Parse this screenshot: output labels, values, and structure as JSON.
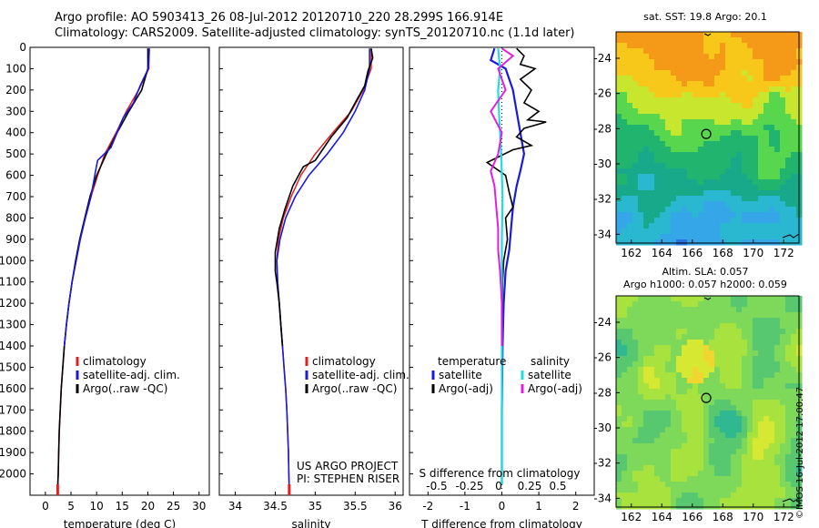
{
  "header": {
    "line1": "Argo profile: AO 5903413_26 08-Jul-2012 20120710_220 28.299S 166.914E",
    "line2": "Climatology: CARS2009. Satellite-adjusted climatology: synTS_20120710.nc (1.1d later)"
  },
  "colors": {
    "climatology": "#e02020",
    "satellite": "#1a1adc",
    "argo": "#000000",
    "sal_satellite": "#22dde0",
    "sal_argo": "#e020e0"
  },
  "chart_data": [
    {
      "type": "line",
      "id": "temperature",
      "xlabel": "temperature (deg C)",
      "ylabel": "",
      "xlim": [
        -3,
        32
      ],
      "ylim": [
        2100,
        0
      ],
      "xticks": [
        0,
        5,
        10,
        15,
        20,
        25,
        30
      ],
      "yticks": [
        0,
        100,
        200,
        300,
        400,
        500,
        600,
        700,
        800,
        900,
        1000,
        1100,
        1200,
        1300,
        1400,
        1500,
        1600,
        1700,
        1800,
        1900,
        2000
      ],
      "legend": [
        "climatology",
        "satellite-adj. clim.",
        "Argo(..raw -QC)"
      ],
      "series": [
        {
          "name": "climatology",
          "points": [
            [
              20.2,
              5
            ],
            [
              20.2,
              100
            ],
            [
              18.2,
              200
            ],
            [
              15.8,
              300
            ],
            [
              13.8,
              400
            ],
            [
              11.6,
              500
            ],
            [
              10.2,
              600
            ],
            [
              8.9,
              700
            ],
            [
              7.8,
              800
            ],
            [
              6.8,
              900
            ],
            [
              6.0,
              1000
            ],
            [
              5.2,
              1100
            ],
            [
              4.6,
              1200
            ],
            [
              4.1,
              1300
            ],
            [
              3.7,
              1400
            ],
            [
              3.4,
              1500
            ],
            [
              3.1,
              1600
            ],
            [
              2.9,
              1700
            ],
            [
              2.7,
              1800
            ],
            [
              2.6,
              1900
            ],
            [
              2.5,
              2000
            ],
            [
              2.4,
              2060
            ]
          ]
        },
        {
          "name": "satellite-adj. clim.",
          "points": [
            [
              20.0,
              5
            ],
            [
              20.0,
              100
            ],
            [
              18.8,
              200
            ],
            [
              16.3,
              300
            ],
            [
              14.0,
              400
            ],
            [
              11.9,
              500
            ],
            [
              10.0,
              600
            ],
            [
              8.7,
              700
            ],
            [
              7.7,
              800
            ],
            [
              6.7,
              900
            ],
            [
              5.9,
              1000
            ],
            [
              5.2,
              1100
            ],
            [
              4.6,
              1200
            ],
            [
              4.1,
              1300
            ],
            [
              3.7,
              1400
            ],
            [
              3.4,
              1500
            ],
            [
              3.1,
              1600
            ],
            [
              2.9,
              1700
            ],
            [
              2.7,
              1800
            ],
            [
              2.6,
              1900
            ],
            [
              2.5,
              2000
            ],
            [
              2.4,
              2060
            ]
          ]
        },
        {
          "name": "Argo(..raw -QC)",
          "points": [
            [
              20.3,
              5
            ],
            [
              20.2,
              60
            ],
            [
              20.1,
              100
            ],
            [
              18.5,
              180
            ],
            [
              17.2,
              260
            ],
            [
              15.2,
              330
            ],
            [
              14.0,
              400
            ],
            [
              12.8,
              470
            ],
            [
              10.2,
              530
            ],
            [
              9.8,
              580
            ],
            [
              8.9,
              700
            ],
            [
              7.8,
              800
            ],
            [
              6.8,
              900
            ],
            [
              6.0,
              1000
            ],
            [
              5.2,
              1100
            ],
            [
              4.6,
              1200
            ],
            [
              4.1,
              1300
            ],
            [
              3.7,
              1400
            ]
          ]
        }
      ]
    },
    {
      "type": "line",
      "id": "salinity",
      "xlabel": "salinity",
      "ylabel": "",
      "xlim": [
        33.8,
        36.1
      ],
      "ylim": [
        2100,
        0
      ],
      "xticks": [
        34,
        34.5,
        35,
        35.5,
        36
      ],
      "legend": [
        "climatology",
        "satellite-adj. clim.",
        "Argo(..raw -QC)"
      ],
      "annotation": [
        "US ARGO PROJECT",
        "PI: STEPHEN RISER"
      ],
      "series": [
        {
          "name": "climatology",
          "points": [
            [
              35.7,
              5
            ],
            [
              35.7,
              100
            ],
            [
              35.6,
              200
            ],
            [
              35.45,
              300
            ],
            [
              35.22,
              400
            ],
            [
              35.0,
              500
            ],
            [
              34.82,
              600
            ],
            [
              34.7,
              700
            ],
            [
              34.6,
              800
            ],
            [
              34.54,
              900
            ],
            [
              34.52,
              1000
            ],
            [
              34.53,
              1100
            ],
            [
              34.55,
              1200
            ],
            [
              34.57,
              1300
            ],
            [
              34.59,
              1400
            ],
            [
              34.61,
              1500
            ],
            [
              34.63,
              1600
            ],
            [
              34.645,
              1700
            ],
            [
              34.655,
              1800
            ],
            [
              34.665,
              1900
            ],
            [
              34.67,
              2000
            ],
            [
              34.675,
              2060
            ]
          ]
        },
        {
          "name": "satellite-adj. clim.",
          "points": [
            [
              35.68,
              5
            ],
            [
              35.68,
              100
            ],
            [
              35.62,
              200
            ],
            [
              35.5,
              300
            ],
            [
              35.35,
              400
            ],
            [
              35.15,
              500
            ],
            [
              34.92,
              600
            ],
            [
              34.75,
              700
            ],
            [
              34.63,
              800
            ],
            [
              34.56,
              900
            ],
            [
              34.52,
              1000
            ],
            [
              34.53,
              1100
            ],
            [
              34.55,
              1200
            ],
            [
              34.57,
              1300
            ],
            [
              34.59,
              1400
            ],
            [
              34.61,
              1500
            ],
            [
              34.63,
              1600
            ],
            [
              34.645,
              1700
            ],
            [
              34.655,
              1800
            ],
            [
              34.665,
              1900
            ],
            [
              34.67,
              2000
            ],
            [
              34.675,
              2060
            ]
          ]
        },
        {
          "name": "Argo(..raw -QC)",
          "points": [
            [
              35.7,
              5
            ],
            [
              35.72,
              50
            ],
            [
              35.66,
              110
            ],
            [
              35.62,
              180
            ],
            [
              35.5,
              260
            ],
            [
              35.4,
              330
            ],
            [
              35.2,
              420
            ],
            [
              35.0,
              530
            ],
            [
              34.85,
              560
            ],
            [
              34.72,
              650
            ],
            [
              34.62,
              760
            ],
            [
              34.55,
              850
            ],
            [
              34.5,
              960
            ],
            [
              34.5,
              1050
            ],
            [
              34.52,
              1100
            ],
            [
              34.55,
              1200
            ],
            [
              34.57,
              1300
            ],
            [
              34.59,
              1400
            ]
          ]
        }
      ]
    },
    {
      "type": "line",
      "id": "difference",
      "xlabel": "T difference from climatology",
      "xlabel_top": "S difference from climatology",
      "xlim": [
        -2.5,
        2.5
      ],
      "ylim": [
        2100,
        0
      ],
      "xticks": [
        -2,
        -1,
        0,
        1,
        2
      ],
      "xticklabels": [
        "-2",
        "-1",
        "0",
        "1",
        "2"
      ],
      "s_ticklabels": [
        "-0.5",
        "-0.25",
        "0",
        "0.25",
        "0.5"
      ],
      "legend_left_title": "temperature",
      "legend_right_title": "salinity",
      "legend": [
        "satellite",
        "Argo(-adj)",
        "satellite",
        "Argo(-adj)"
      ],
      "series": [
        {
          "name": "temperature satellite",
          "points": [
            [
              -0.2,
              5
            ],
            [
              -0.3,
              60
            ],
            [
              0.1,
              100
            ],
            [
              0.3,
              200
            ],
            [
              0.4,
              300
            ],
            [
              0.5,
              400
            ],
            [
              0.6,
              500
            ],
            [
              0.5,
              580
            ],
            [
              0.4,
              650
            ],
            [
              0.3,
              750
            ],
            [
              0.25,
              850
            ],
            [
              0.2,
              950
            ],
            [
              0.1,
              1050
            ],
            [
              0.05,
              1200
            ],
            [
              0.02,
              1400
            ],
            [
              0.0,
              1700
            ],
            [
              0.0,
              2050
            ]
          ]
        },
        {
          "name": "temperature Argo(-adj)",
          "points": [
            [
              0.4,
              5
            ],
            [
              0.6,
              40
            ],
            [
              0.5,
              80
            ],
            [
              0.9,
              100
            ],
            [
              0.5,
              150
            ],
            [
              0.8,
              200
            ],
            [
              0.6,
              260
            ],
            [
              1.0,
              300
            ],
            [
              0.7,
              340
            ],
            [
              1.2,
              350
            ],
            [
              0.6,
              380
            ],
            [
              0.4,
              420
            ],
            [
              0.8,
              460
            ],
            [
              0.3,
              480
            ],
            [
              -0.4,
              540
            ],
            [
              0.1,
              600
            ],
            [
              0.2,
              680
            ],
            [
              0.3,
              750
            ],
            [
              0.1,
              800
            ],
            [
              0.15,
              900
            ],
            [
              0.05,
              1000
            ],
            [
              0.02,
              1100
            ],
            [
              0.0,
              1400
            ]
          ]
        },
        {
          "name": "salinity satellite",
          "points": [
            [
              -0.1,
              5
            ],
            [
              -0.05,
              100
            ],
            [
              -0.1,
              200
            ],
            [
              -0.08,
              300
            ],
            [
              -0.05,
              400
            ],
            [
              -0.02,
              500
            ],
            [
              0.0,
              600
            ],
            [
              0.02,
              700
            ],
            [
              0.0,
              900
            ],
            [
              0.0,
              1200
            ],
            [
              0.0,
              1700
            ],
            [
              0.0,
              2050
            ]
          ]
        },
        {
          "name": "salinity Argo(-adj)",
          "points": [
            [
              0.0,
              5
            ],
            [
              0.3,
              40
            ],
            [
              -0.1,
              100
            ],
            [
              0.1,
              200
            ],
            [
              -0.3,
              300
            ],
            [
              0.0,
              400
            ],
            [
              -0.1,
              500
            ],
            [
              -0.3,
              580
            ],
            [
              -0.2,
              650
            ],
            [
              -0.15,
              750
            ],
            [
              -0.1,
              850
            ],
            [
              -0.1,
              950
            ],
            [
              -0.05,
              1050
            ],
            [
              0.0,
              1200
            ],
            [
              0.0,
              1400
            ]
          ]
        }
      ]
    },
    {
      "type": "heatmap",
      "id": "sst_map",
      "title": "sat. SST: 19.8 Argo: 20.1",
      "xlim": [
        161,
        173
      ],
      "ylim": [
        -34.5,
        -22.5
      ],
      "xticks": [
        162,
        164,
        166,
        168,
        170,
        172
      ],
      "yticks": [
        -24,
        -26,
        -28,
        -30,
        -32,
        -34
      ],
      "marker": [
        166.914,
        -28.299
      ],
      "color_bands": [
        "#f59a18",
        "#f7c71a",
        "#c8e62e",
        "#58d64e",
        "#20b46e",
        "#18a88a",
        "#2ab8d0",
        "#35a6e8",
        "#2a72e0"
      ]
    },
    {
      "type": "heatmap",
      "id": "sla_map",
      "title_line1": "Altim. SLA: 0.057",
      "title_line2": "Argo h1000: 0.057 h2000: 0.059",
      "xlim": [
        161,
        173
      ],
      "ylim": [
        -34.5,
        -22.5
      ],
      "xticks": [
        162,
        164,
        166,
        168,
        170,
        172
      ],
      "yticks": [
        -24,
        -26,
        -28,
        -30,
        -32,
        -34
      ],
      "marker": [
        166.914,
        -28.299
      ],
      "color_bands": [
        "#30b890",
        "#58c870",
        "#7ed85a",
        "#a8e23e",
        "#d6e832",
        "#f2d630"
      ]
    }
  ],
  "side_label": "©IMOS 16-Jul-2012 17:00:47"
}
